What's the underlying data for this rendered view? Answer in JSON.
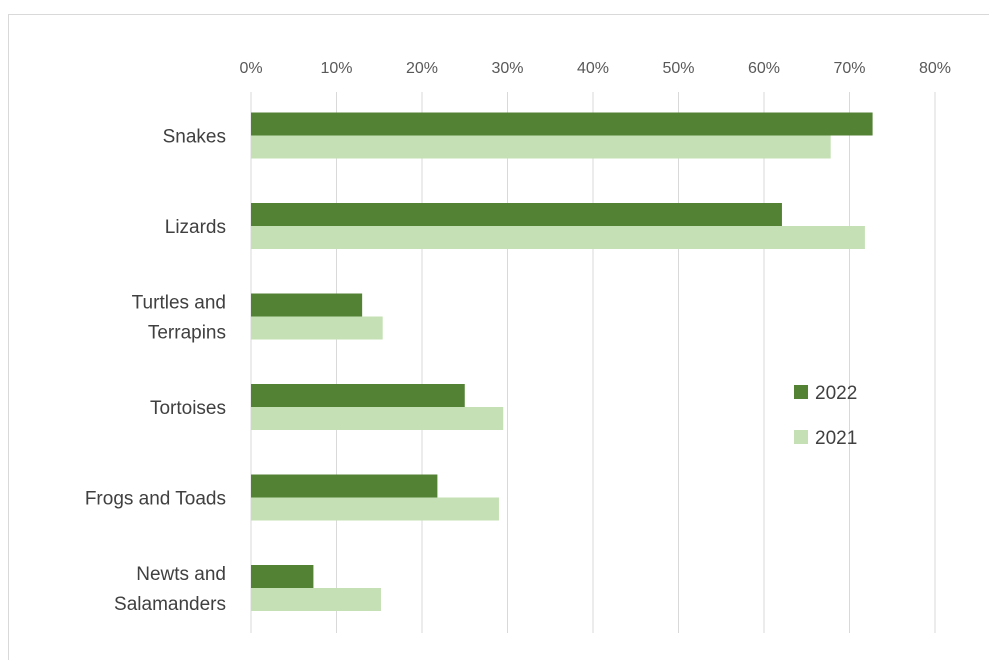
{
  "chart_data": {
    "type": "bar",
    "orientation": "horizontal",
    "title": "",
    "categories": [
      [
        "Snakes"
      ],
      [
        "Lizards"
      ],
      [
        "Turtles and",
        "Terrapins"
      ],
      [
        "Tortoises"
      ],
      [
        "Frogs and Toads"
      ],
      [
        "Newts and",
        "Salamanders"
      ]
    ],
    "series": [
      {
        "name": "2022",
        "color": "#548235",
        "values": [
          72.7,
          62.1,
          13.0,
          25.0,
          21.8,
          7.3
        ]
      },
      {
        "name": "2021",
        "color": "#c5e0b4",
        "values": [
          67.8,
          71.8,
          15.4,
          29.5,
          29.0,
          15.2
        ]
      }
    ],
    "xlim": [
      0,
      80
    ],
    "xticks": [
      0,
      10,
      20,
      30,
      40,
      50,
      60,
      70,
      80
    ],
    "tick_suffix": "%",
    "gridlines": true,
    "axis_position": "top",
    "legend_position": "right"
  }
}
